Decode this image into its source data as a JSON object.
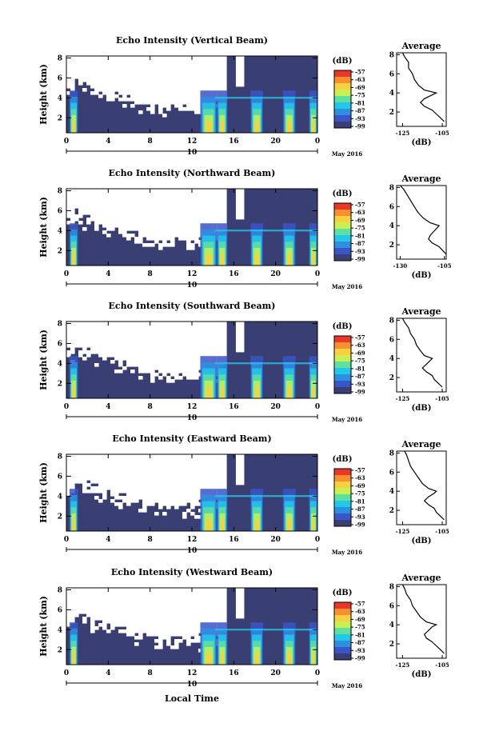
{
  "chart_data": {
    "type": "heatmap",
    "colorscale": [
      "#3a3f73",
      "#3a55c8",
      "#2d8fe0",
      "#22c8e8",
      "#5ee0a0",
      "#c8f050",
      "#f8d040",
      "#f89030",
      "#e83828"
    ],
    "shared": {
      "xlabel": "Local Time",
      "x_ticks": [
        "0",
        "4",
        "8",
        "12",
        "16",
        "20",
        "0"
      ],
      "x_range": [
        0,
        24
      ],
      "date_tick": "10",
      "date_label": "May 2016",
      "ylabel": "Height (km)",
      "y_ticks": [
        "2",
        "4",
        "6",
        "8"
      ],
      "y_range": [
        0.5,
        8.2
      ],
      "colorbar_unit": "(dB)",
      "colorbar_ticks": [
        "-57",
        "-63",
        "-69",
        "-75",
        "-81",
        "-87",
        "-93",
        "-99"
      ],
      "profile_title": "Average",
      "profile_unit": "(dB)",
      "profile_y_ticks": [
        "2",
        "4",
        "6",
        "8"
      ]
    },
    "panels": [
      {
        "title": "Echo Intensity (Vertical Beam)",
        "profile_x_ticks": [
          "-125",
          "-105"
        ],
        "profile_xlim": [
          -128,
          -103
        ],
        "profile": [
          [
            -104,
            1.0
          ],
          [
            -106,
            1.4
          ],
          [
            -108,
            1.8
          ],
          [
            -110,
            2.2
          ],
          [
            -114,
            2.6
          ],
          [
            -116,
            3.0
          ],
          [
            -114,
            3.4
          ],
          [
            -110,
            3.8
          ],
          [
            -108,
            4.0
          ],
          [
            -114,
            4.3
          ],
          [
            -117,
            4.8
          ],
          [
            -119,
            5.4
          ],
          [
            -120,
            6.0
          ],
          [
            -122,
            6.6
          ],
          [
            -122,
            7.2
          ],
          [
            -124,
            7.8
          ],
          [
            -125,
            8.2
          ]
        ]
      },
      {
        "title": "Echo Intensity (Northward Beam)",
        "profile_x_ticks": [
          "-130",
          "-105"
        ],
        "profile_xlim": [
          -132,
          -104
        ],
        "profile": [
          [
            -104,
            1.0
          ],
          [
            -106,
            1.4
          ],
          [
            -108,
            1.8
          ],
          [
            -112,
            2.2
          ],
          [
            -114,
            2.6
          ],
          [
            -113,
            3.0
          ],
          [
            -111,
            3.4
          ],
          [
            -109,
            3.8
          ],
          [
            -108,
            4.0
          ],
          [
            -113,
            4.3
          ],
          [
            -117,
            4.8
          ],
          [
            -120,
            5.4
          ],
          [
            -122,
            6.0
          ],
          [
            -124,
            6.6
          ],
          [
            -126,
            7.2
          ],
          [
            -128,
            7.8
          ],
          [
            -130,
            8.2
          ]
        ]
      },
      {
        "title": "Echo Intensity (Southward Beam)",
        "profile_x_ticks": [
          "-125",
          "-105"
        ],
        "profile_xlim": [
          -128,
          -103
        ],
        "profile": [
          [
            -105,
            1.0
          ],
          [
            -107,
            1.4
          ],
          [
            -109,
            1.8
          ],
          [
            -110,
            2.2
          ],
          [
            -113,
            2.6
          ],
          [
            -115,
            3.0
          ],
          [
            -113,
            3.4
          ],
          [
            -111,
            3.8
          ],
          [
            -110,
            4.0
          ],
          [
            -114,
            4.3
          ],
          [
            -116,
            4.8
          ],
          [
            -118,
            5.4
          ],
          [
            -119,
            6.0
          ],
          [
            -121,
            6.6
          ],
          [
            -122,
            7.2
          ],
          [
            -124,
            7.8
          ],
          [
            -125,
            8.2
          ]
        ]
      },
      {
        "title": "Echo Intensity (Eastward Beam)",
        "profile_x_ticks": [
          "-125",
          "-105"
        ],
        "profile_xlim": [
          -128,
          -103
        ],
        "profile": [
          [
            -104,
            1.0
          ],
          [
            -106,
            1.4
          ],
          [
            -108,
            1.8
          ],
          [
            -109,
            2.2
          ],
          [
            -112,
            2.6
          ],
          [
            -114,
            3.0
          ],
          [
            -112,
            3.4
          ],
          [
            -109,
            3.8
          ],
          [
            -108,
            4.0
          ],
          [
            -112,
            4.3
          ],
          [
            -115,
            4.8
          ],
          [
            -117,
            5.4
          ],
          [
            -119,
            6.0
          ],
          [
            -121,
            6.6
          ],
          [
            -122,
            7.2
          ],
          [
            -123,
            7.8
          ],
          [
            -124,
            8.2
          ]
        ]
      },
      {
        "title": "Echo Intensity (Westward Beam)",
        "profile_x_ticks": [
          "-125",
          "-105"
        ],
        "profile_xlim": [
          -128,
          -103
        ],
        "profile": [
          [
            -104,
            1.0
          ],
          [
            -106,
            1.4
          ],
          [
            -108,
            1.8
          ],
          [
            -110,
            2.2
          ],
          [
            -113,
            2.6
          ],
          [
            -114,
            3.0
          ],
          [
            -112,
            3.4
          ],
          [
            -110,
            3.8
          ],
          [
            -108,
            4.0
          ],
          [
            -113,
            4.3
          ],
          [
            -116,
            4.8
          ],
          [
            -118,
            5.4
          ],
          [
            -120,
            6.0
          ],
          [
            -121,
            6.6
          ],
          [
            -123,
            7.2
          ],
          [
            -124,
            7.8
          ],
          [
            -125,
            8.2
          ]
        ]
      }
    ]
  }
}
